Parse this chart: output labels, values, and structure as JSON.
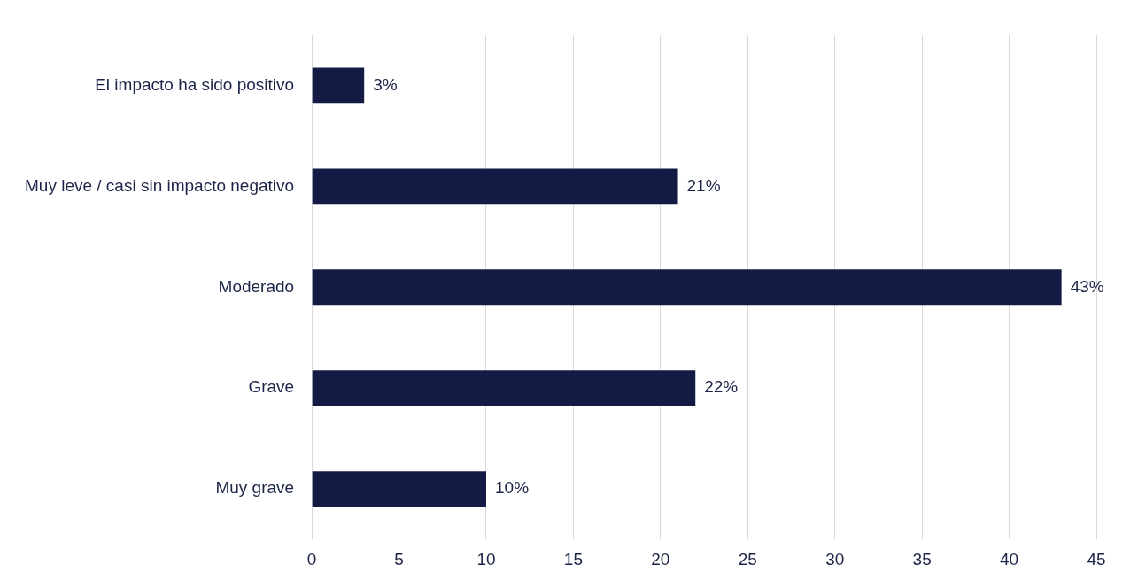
{
  "chart_data": {
    "type": "bar",
    "orientation": "horizontal",
    "categories": [
      "El impacto ha sido positivo",
      "Muy leve / casi sin impacto negativo",
      "Moderado",
      "Grave",
      "Muy grave"
    ],
    "values": [
      3,
      21,
      43,
      22,
      10
    ],
    "value_labels": [
      "3%",
      "21%",
      "43%",
      "22%",
      "10%"
    ],
    "color": "#131b45",
    "xlim": [
      0,
      45
    ],
    "xticks": [
      0,
      5,
      10,
      15,
      20,
      25,
      30,
      35,
      40,
      45
    ],
    "grid": "x",
    "legend": false
  }
}
